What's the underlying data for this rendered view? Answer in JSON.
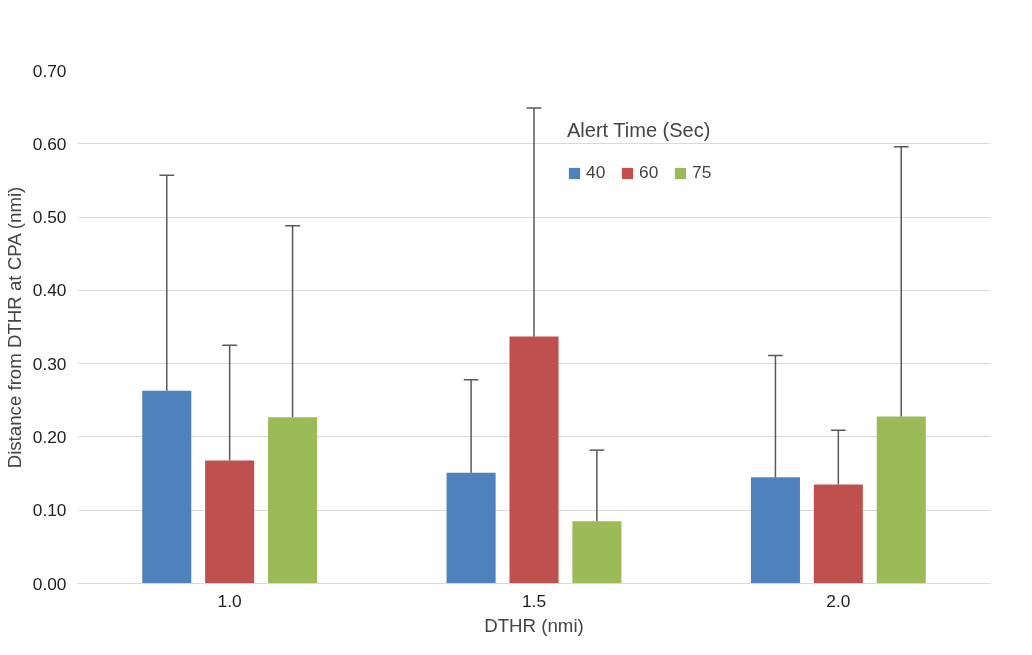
{
  "chart_data": {
    "type": "bar",
    "xlabel": "DTHR (nmi)",
    "ylabel": "Distance from DTHR at CPA (nmi)",
    "legend_title": "Alert Time (Sec)",
    "categories": [
      "1.0",
      "1.5",
      "2.0"
    ],
    "series": [
      {
        "name": "40",
        "color": "#4f81bd",
        "values": [
          0.263,
          0.151,
          0.145
        ],
        "errors": [
          [
            0.263,
            0.557
          ],
          [
            0.151,
            0.278
          ],
          [
            0.145,
            0.311
          ]
        ]
      },
      {
        "name": "60",
        "color": "#c0504d",
        "values": [
          0.168,
          0.337,
          0.135
        ],
        "errors": [
          [
            0.168,
            0.325
          ],
          [
            0.337,
            0.649
          ],
          [
            0.135,
            0.209
          ]
        ]
      },
      {
        "name": "75",
        "color": "#9bbb59",
        "values": [
          0.227,
          0.085,
          0.228
        ],
        "errors": [
          [
            0.227,
            0.488
          ],
          [
            0.085,
            0.182
          ],
          [
            0.228,
            0.596
          ]
        ]
      }
    ],
    "ylim": [
      0,
      0.7
    ],
    "yticks": [
      {
        "value": 0,
        "label": "0.00"
      },
      {
        "value": 0.1,
        "label": "0.10"
      },
      {
        "value": 0.2,
        "label": "0.20"
      },
      {
        "value": 0.3,
        "label": "0.30"
      },
      {
        "value": 0.4,
        "label": "0.40"
      },
      {
        "value": 0.5,
        "label": "0.50"
      },
      {
        "value": 0.6,
        "label": "0.60"
      },
      {
        "value": 0.7,
        "label": "0.70"
      }
    ],
    "grid": "y",
    "legend": "top right"
  }
}
